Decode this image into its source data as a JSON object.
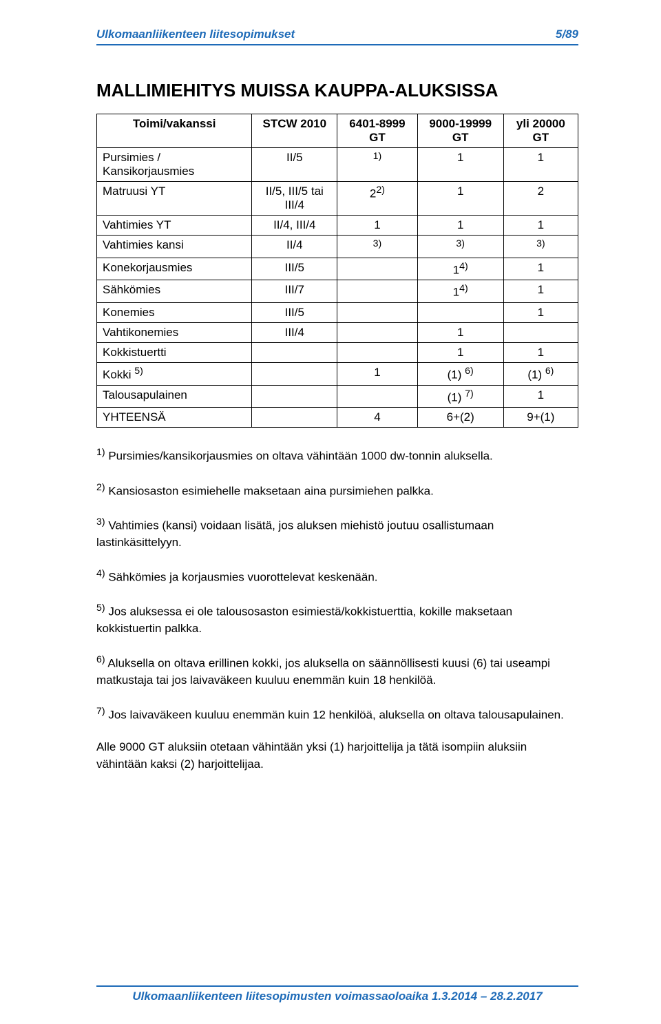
{
  "header": {
    "left": "Ulkomaanliikenteen liitesopimukset",
    "right": "5/89"
  },
  "section_title": "MALLIMIEHITYS MUISSA KAUPPA-ALUKSISSA",
  "table": {
    "columns": [
      "Toimi/vakanssi",
      "STCW 2010",
      "6401-8999 GT",
      "9000-19999 GT",
      "yli 20000 GT"
    ],
    "rows": [
      {
        "cells": [
          "Pursimies / Kansikorjausmies",
          "II/5",
          "<sup>1)</sup>",
          "1",
          "1"
        ]
      },
      {
        "cells": [
          "Matruusi YT",
          "II/5, III/5 tai III/4",
          "2<sup>2)</sup>",
          "1",
          "2"
        ]
      },
      {
        "cells": [
          "Vahtimies YT",
          "II/4, III/4",
          "1",
          "1",
          "1"
        ]
      },
      {
        "cells": [
          "Vahtimies kansi",
          "II/4",
          "<sup>3)</sup>",
          "<sup>3)</sup>",
          "<sup>3)</sup>"
        ]
      },
      {
        "cells": [
          "Konekorjausmies",
          "III/5",
          "",
          "1<sup>4)</sup>",
          "1"
        ]
      },
      {
        "cells": [
          "Sähkömies",
          "III/7",
          "",
          "1<sup>4)</sup>",
          "1"
        ]
      },
      {
        "cells": [
          "Konemies",
          "III/5",
          "",
          "",
          "1"
        ]
      },
      {
        "cells": [
          "Vahtikonemies",
          "III/4",
          "",
          "1",
          ""
        ]
      },
      {
        "cells": [
          "Kokkistuertti",
          "",
          "",
          "1",
          "1"
        ]
      },
      {
        "cells": [
          "Kokki <sup>5)</sup>",
          "",
          "1",
          "(1) <sup>6)</sup>",
          "(1) <sup>6)</sup>"
        ]
      },
      {
        "cells": [
          "Talousapulainen",
          "",
          "",
          "(1) <sup>7)</sup>",
          "1"
        ]
      },
      {
        "cells": [
          "YHTEENSÄ",
          "",
          "4",
          "6+(2)",
          "9+(1)"
        ]
      }
    ]
  },
  "notes": [
    "<sup>1)</sup> Pursimies/kansikorjausmies on oltava vähintään 1000 dw-tonnin aluksella.",
    "<sup>2)</sup> Kansiosaston esimiehelle maksetaan aina pursimiehen palkka.",
    "<sup>3)</sup> Vahtimies (kansi) voidaan lisätä, jos aluksen miehistö joutuu osallistumaan lastinkäsittelyyn.",
    "<sup>4)</sup> Sähkömies ja korjausmies vuorottelevat keskenään.",
    "<sup>5)</sup> Jos aluksessa ei ole talousosaston esimiestä/kokkistuerttia, kokille maksetaan kokkistuertin palkka.",
    "<sup>6)</sup> Aluksella on oltava erillinen kokki, jos aluksella on säännöllisesti kuusi (6) tai useampi matkustaja tai jos laivaväkeen kuuluu enemmän kuin 18 henkilöä.",
    "<sup>7)</sup> Jos laivaväkeen kuuluu enemmän kuin 12 henkilöä, aluksella on oltava talousapulainen.",
    "Alle 9000 GT aluksiin otetaan vähintään yksi (1) harjoittelija ja tätä isompiin aluksiin vähintään kaksi (2) harjoittelijaa."
  ],
  "footer": "Ulkomaanliikenteen liitesopimusten voimassaoloaika 1.3.2014 – 28.2.2017"
}
